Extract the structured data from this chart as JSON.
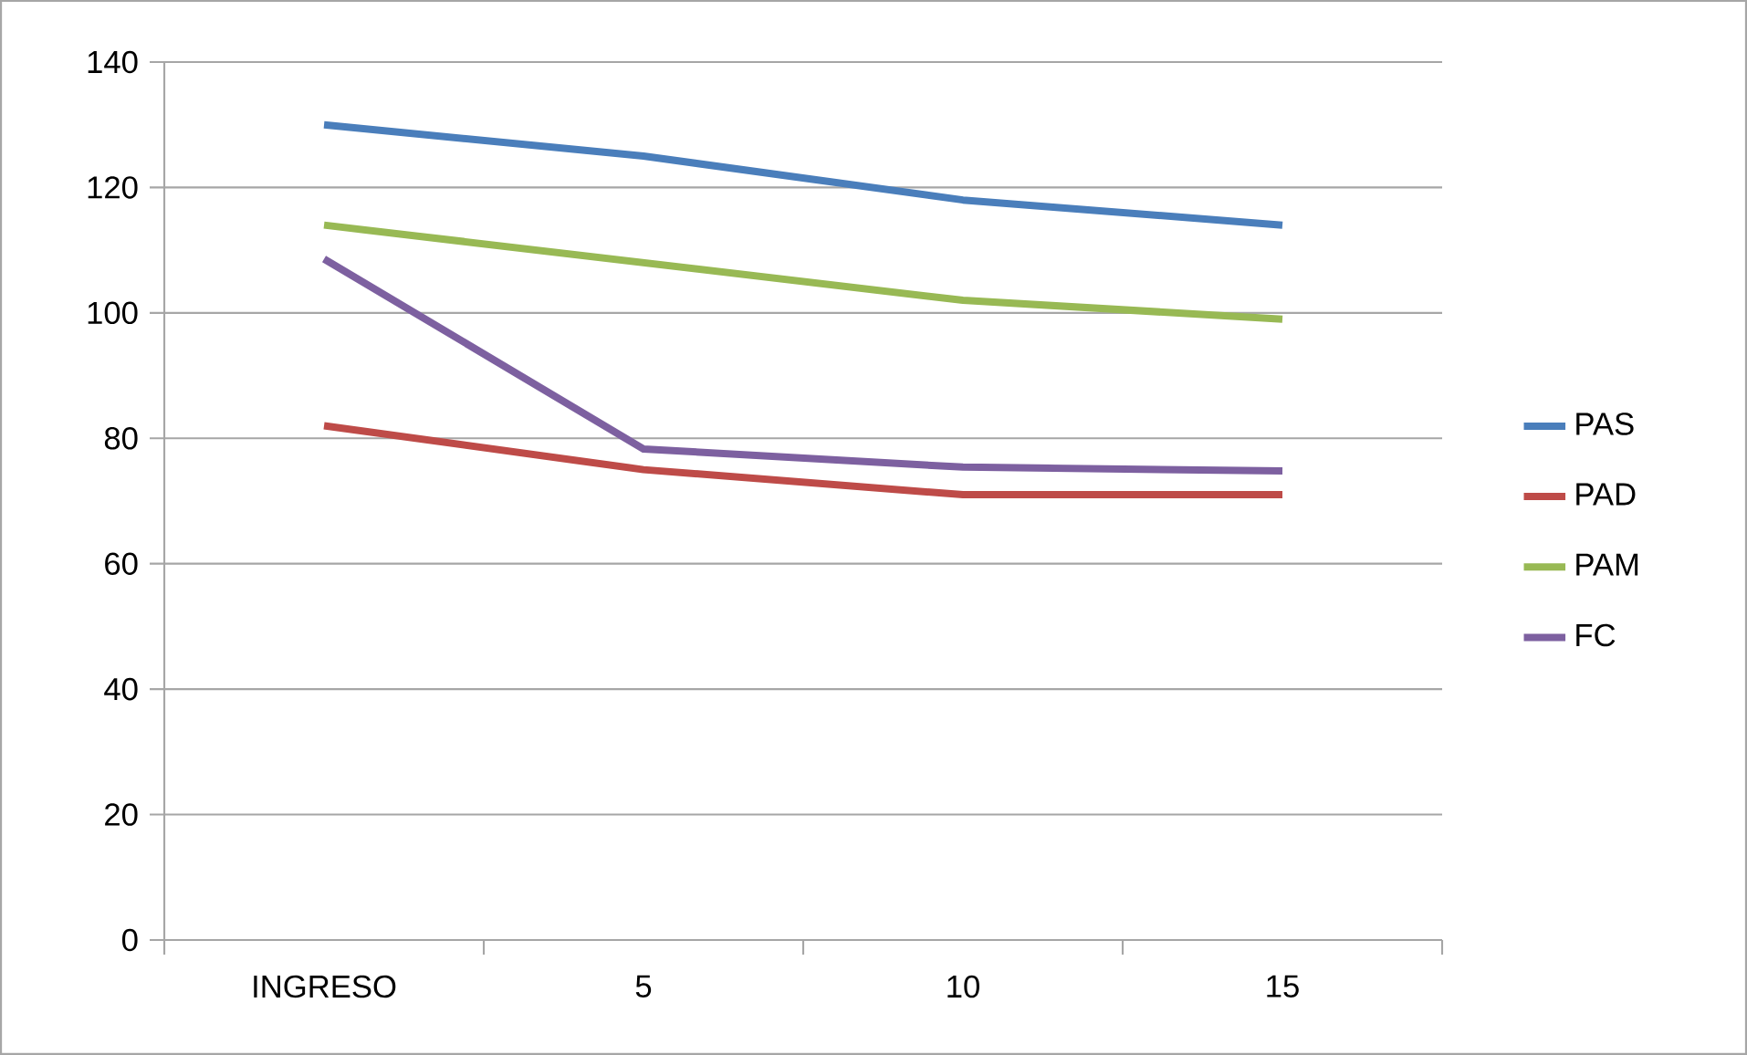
{
  "chart_data": {
    "type": "line",
    "categories": [
      "INGRESO",
      "5",
      "10",
      "15"
    ],
    "series": [
      {
        "name": "PAS",
        "color": "#4a7ebb",
        "values": [
          130,
          125,
          118,
          114
        ]
      },
      {
        "name": "PAD",
        "color": "#be4b48",
        "values": [
          82,
          75,
          71,
          71
        ]
      },
      {
        "name": "PAM",
        "color": "#98b954",
        "values": [
          114,
          108,
          102,
          99
        ]
      },
      {
        "name": "FC",
        "color": "#7d60a0",
        "values": [
          108.6,
          78.3,
          75.4,
          74.8
        ]
      }
    ],
    "ylim": [
      0,
      140
    ],
    "yticks": [
      0,
      20,
      40,
      60,
      80,
      100,
      120,
      140
    ],
    "grid": "y",
    "legend": "right",
    "marker": "none",
    "line_style": "solid"
  }
}
